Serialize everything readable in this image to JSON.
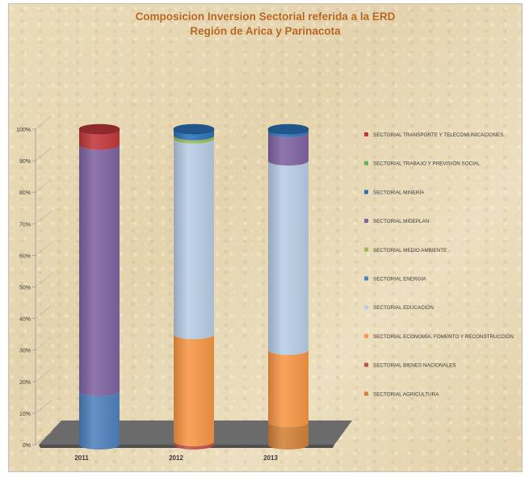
{
  "chart_data": {
    "type": "bar",
    "title": "Composicion Inversion Sectorial referida a la ERD",
    "subtitle": "Región de Arica y Parinacota",
    "categories": [
      "2011",
      "2012",
      "2013"
    ],
    "ylim": [
      0,
      100
    ],
    "yticks": [
      "0%",
      "10%",
      "20%",
      "30%",
      "40%",
      "50%",
      "60%",
      "70%",
      "80%",
      "90%",
      "100%"
    ],
    "stacked": "percent",
    "legend_position": "right",
    "grid": false,
    "series": [
      {
        "name": "SECTORIAL AGRICULTURA",
        "color": "#d2823a",
        "values": [
          0,
          0,
          7
        ]
      },
      {
        "name": "SECTORIAL BIENES NACIONALES",
        "color": "#c0504d",
        "values": [
          0,
          1,
          0
        ]
      },
      {
        "name": "SECTORIAL ECONOMÍA, FOMENTO Y RECONSTRUCCIÓN",
        "color": "#f79646",
        "values": [
          0,
          34,
          23
        ]
      },
      {
        "name": "SECTORIAL EDUCACIÓN",
        "color": "#b9cde5",
        "values": [
          0,
          62,
          60
        ]
      },
      {
        "name": "SECTORIAL ENERGIA",
        "color": "#4f81bd",
        "values": [
          17,
          0,
          0
        ]
      },
      {
        "name": "SECTORIAL MEDIO AMBIENTE",
        "color": "#9bbb59",
        "values": [
          0,
          1,
          0
        ]
      },
      {
        "name": "SECTORIAL MIDEPLAN",
        "color": "#8064a2",
        "values": [
          78,
          0,
          9
        ]
      },
      {
        "name": "SECTORIAL MINERÍA",
        "color": "#2c73b8",
        "values": [
          0,
          2,
          1
        ]
      },
      {
        "name": "SECTORIAL TRABAJO Y PREVISIÓN SOCIAL",
        "color": "#5fb356",
        "values": [
          0,
          0,
          0
        ]
      },
      {
        "name": "SECTORIAL TRANSPORTE Y TELECOMUNICACIONES",
        "color": "#c0393b",
        "values": [
          5,
          0,
          0
        ]
      }
    ]
  }
}
